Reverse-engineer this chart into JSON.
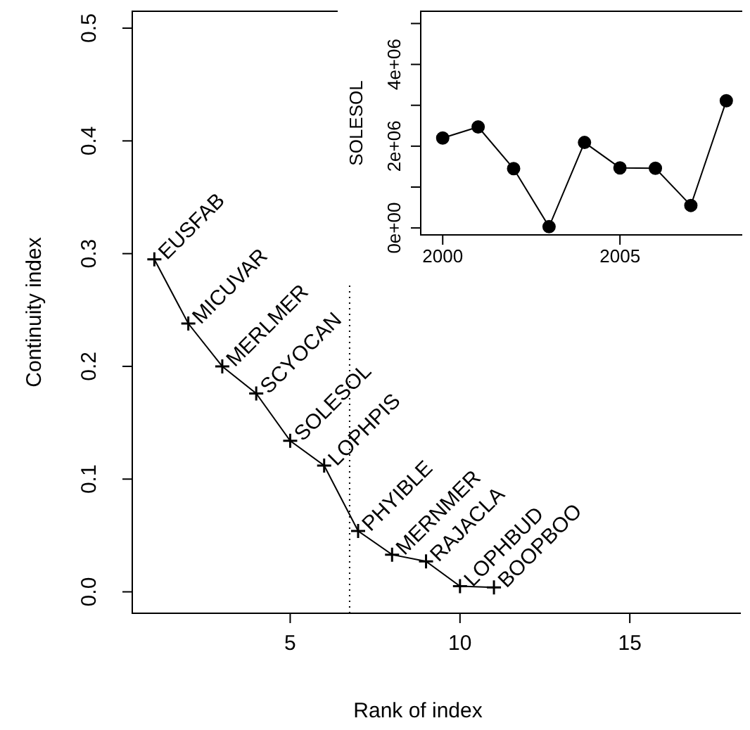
{
  "chart_data": [
    {
      "type": "line",
      "xlabel": "Rank of index",
      "ylabel": "Continuity index",
      "x": [
        1,
        2,
        3,
        4,
        5,
        6,
        7,
        8,
        9,
        10,
        11
      ],
      "values": [
        0.295,
        0.238,
        0.2,
        0.176,
        0.134,
        0.112,
        0.054,
        0.033,
        0.027,
        0.005,
        0.004
      ],
      "color": "#000000",
      "marker": "cross",
      "grid": false,
      "legend": false,
      "xlim": [
        0.35,
        18.27
      ],
      "ylim": [
        -0.019,
        0.515
      ],
      "xticks": [
        5,
        10,
        15
      ],
      "yticks": [
        {
          "value": 0,
          "label": "0.0"
        },
        {
          "value": 0.1,
          "label": "0.1"
        },
        {
          "value": 0.2,
          "label": "0.2"
        },
        {
          "value": 0.3,
          "label": "0.3"
        },
        {
          "value": 0.4,
          "label": "0.4"
        },
        {
          "value": 0.5,
          "label": "0.5"
        }
      ],
      "ref_lines": [
        {
          "axis": "x",
          "value": 6.75,
          "line_style": "dotted"
        }
      ],
      "annotations": [
        {
          "text": "EUSFAB",
          "x": 1,
          "y": 0.295
        },
        {
          "text": "MICUVAR",
          "x": 2,
          "y": 0.238
        },
        {
          "text": "MERLMER",
          "x": 3,
          "y": 0.2
        },
        {
          "text": "SCYOCAN",
          "x": 4,
          "y": 0.176
        },
        {
          "text": "SOLESOL",
          "x": 5,
          "y": 0.134
        },
        {
          "text": "LOPHPIS",
          "x": 6,
          "y": 0.112
        },
        {
          "text": "PHYIBLE",
          "x": 7,
          "y": 0.054
        },
        {
          "text": "MERNMER",
          "x": 8,
          "y": 0.033
        },
        {
          "text": "RAJACLA",
          "x": 9,
          "y": 0.027
        },
        {
          "text": "LOPHBUD",
          "x": 10,
          "y": 0.005
        },
        {
          "text": "BOOPBOO",
          "x": 11,
          "y": 0.004
        }
      ]
    },
    {
      "type": "line",
      "ylabel": "SOLESOL",
      "x": [
        2000,
        2001,
        2002,
        2003,
        2004,
        2005,
        2006,
        2007,
        2008
      ],
      "values": [
        2200000,
        2470000,
        1450000,
        30000,
        2090000,
        1470000,
        1460000,
        550000,
        3110000
      ],
      "color": "#000000",
      "marker": "circle",
      "grid": false,
      "legend": false,
      "xlim": [
        1999.38,
        2008.45
      ],
      "ylim": [
        -170000,
        5300000
      ],
      "xticks": [
        2000,
        2005
      ],
      "yticks": [
        {
          "value": 0,
          "label": "0e+00"
        },
        {
          "value": 1000000,
          "label": null
        },
        {
          "value": 2000000,
          "label": "2e+06"
        },
        {
          "value": 3000000,
          "label": null
        },
        {
          "value": 4000000,
          "label": "4e+06"
        },
        {
          "value": 5000000,
          "label": null
        }
      ]
    }
  ]
}
